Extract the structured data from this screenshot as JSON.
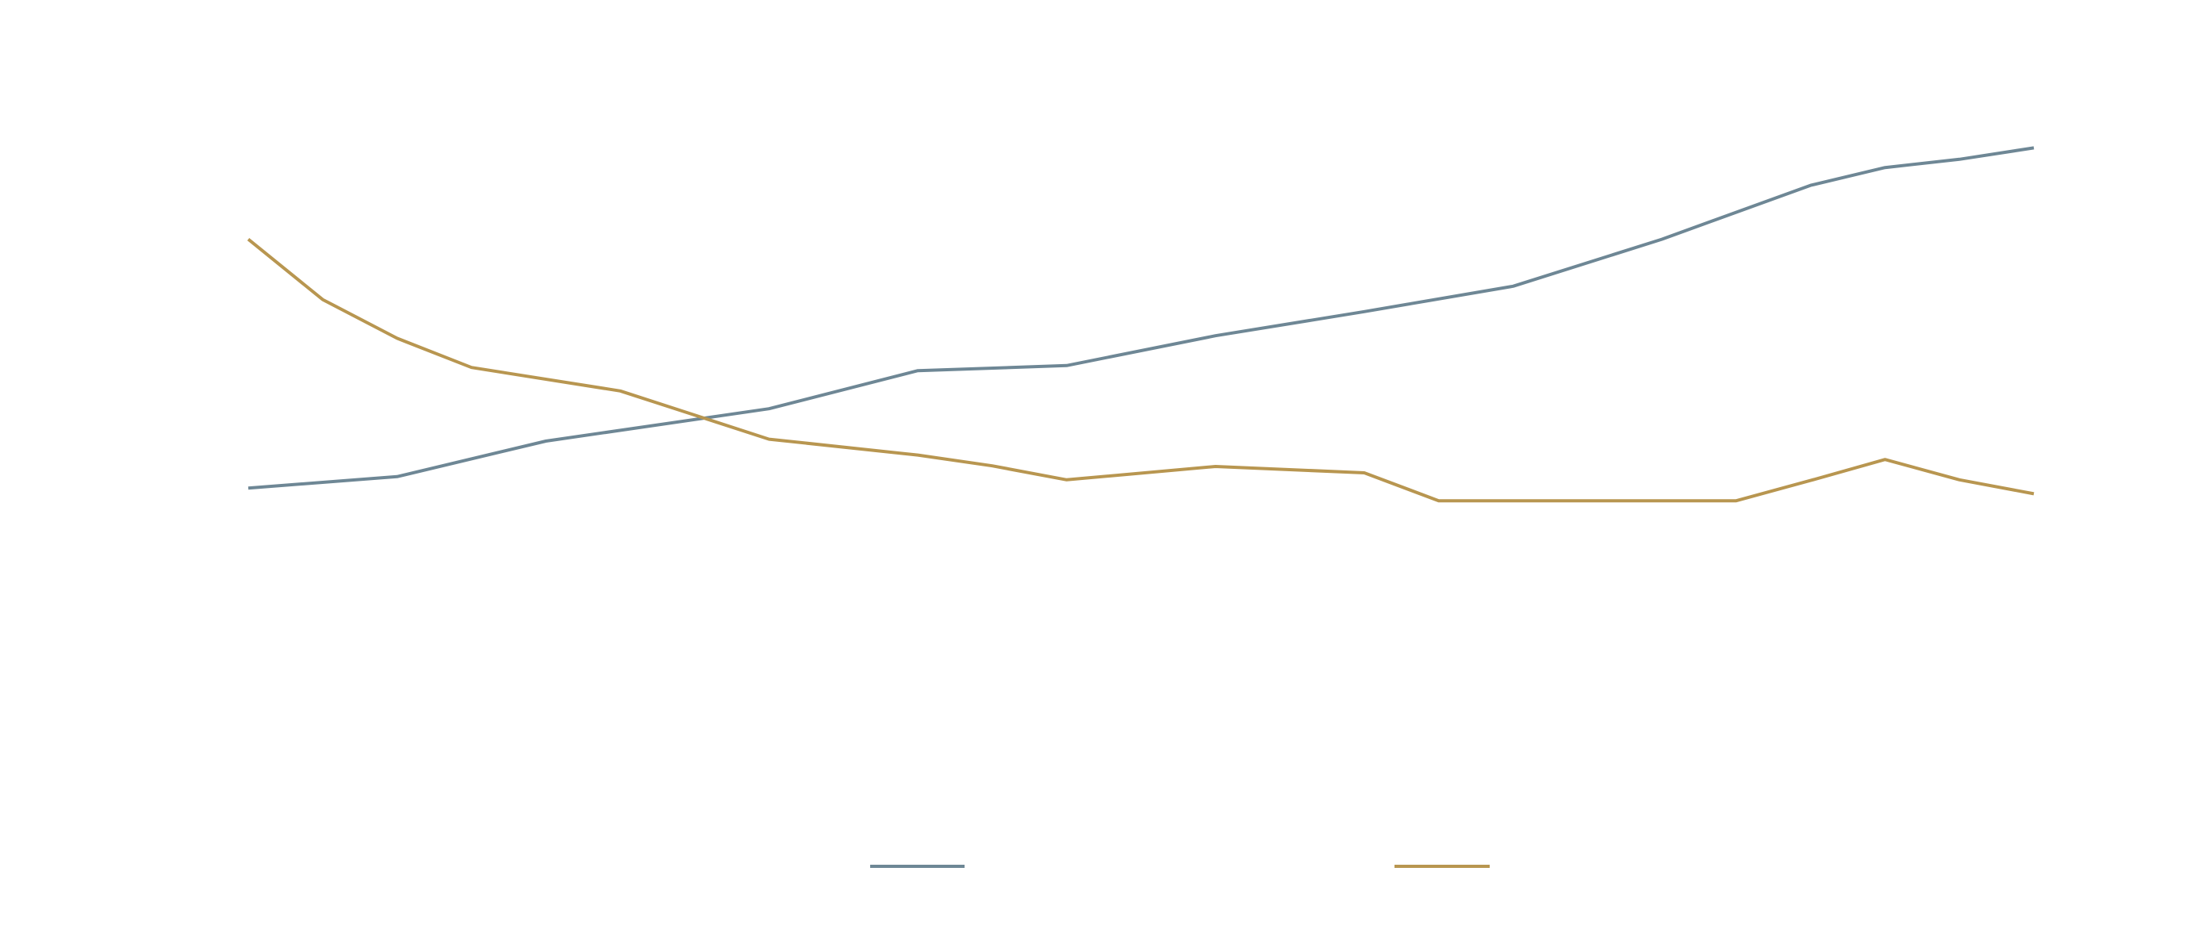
{
  "chart_data": {
    "type": "line",
    "title": "",
    "xlabel": "",
    "ylabel": "",
    "grid": false,
    "legend_position": "bottom",
    "xlim": [
      0,
      24
    ],
    "ylim": [
      0,
      1100
    ],
    "series": [
      {
        "name": "",
        "color": "#6e8795",
        "x": [
          0,
          2,
          4,
          7,
          9,
          11,
          13,
          15,
          17,
          19,
          21,
          22,
          23,
          24
        ],
        "y": [
          456,
          474,
          530,
          581,
          641,
          649,
          696,
          734,
          774,
          848,
          933,
          961,
          974,
          992
        ]
      },
      {
        "name": "",
        "color": "#b89650",
        "x": [
          0,
          1,
          2,
          3,
          5,
          7,
          9,
          10,
          11,
          13,
          15,
          16,
          17,
          18,
          20,
          21,
          22,
          23,
          24
        ],
        "y": [
          848,
          753,
          692,
          646,
          609,
          533,
          508,
          491,
          469,
          490,
          480,
          436,
          436,
          436,
          436,
          468,
          501,
          469,
          447
        ]
      }
    ]
  }
}
